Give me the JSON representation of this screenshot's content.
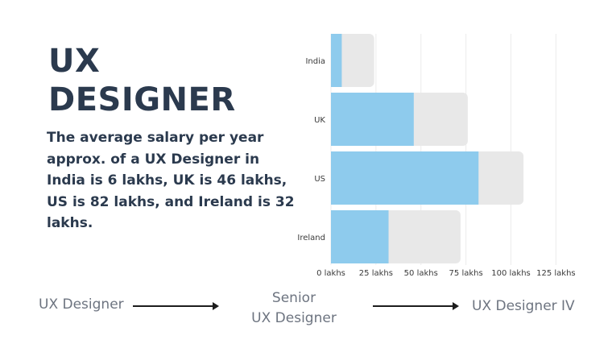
{
  "heading": {
    "line1": "UX",
    "line2": "DESIGNER"
  },
  "description": "The average salary per year approx. of a UX Designer in India is 6 lakhs, UK is 46 lakhs, US is 82 lakhs, and Ireland is 32 lakhs.",
  "career_path": {
    "step1": "UX Designer",
    "step2_line1": "Senior",
    "step2_line2": "UX Designer",
    "step3": "UX Designer IV"
  },
  "chart_data": {
    "type": "bar",
    "orientation": "horizontal",
    "categories": [
      "India",
      "UK",
      "US",
      "Ireland"
    ],
    "series": [
      {
        "values": [
          6,
          46,
          82,
          32
        ],
        "color": "#8ecbed"
      },
      {
        "values": [
          24,
          76,
          107,
          72
        ],
        "color": "#e8e8e8"
      }
    ],
    "x_ticks": [
      "0 lakhs",
      "25 lakhs",
      "50 lakhs",
      "75 lakhs",
      "100 lakhs",
      "125 lakhs"
    ],
    "xlim": [
      0,
      125
    ],
    "grid": true,
    "colors": {
      "grid": "#ececec",
      "text": "#3a3a3a"
    }
  }
}
